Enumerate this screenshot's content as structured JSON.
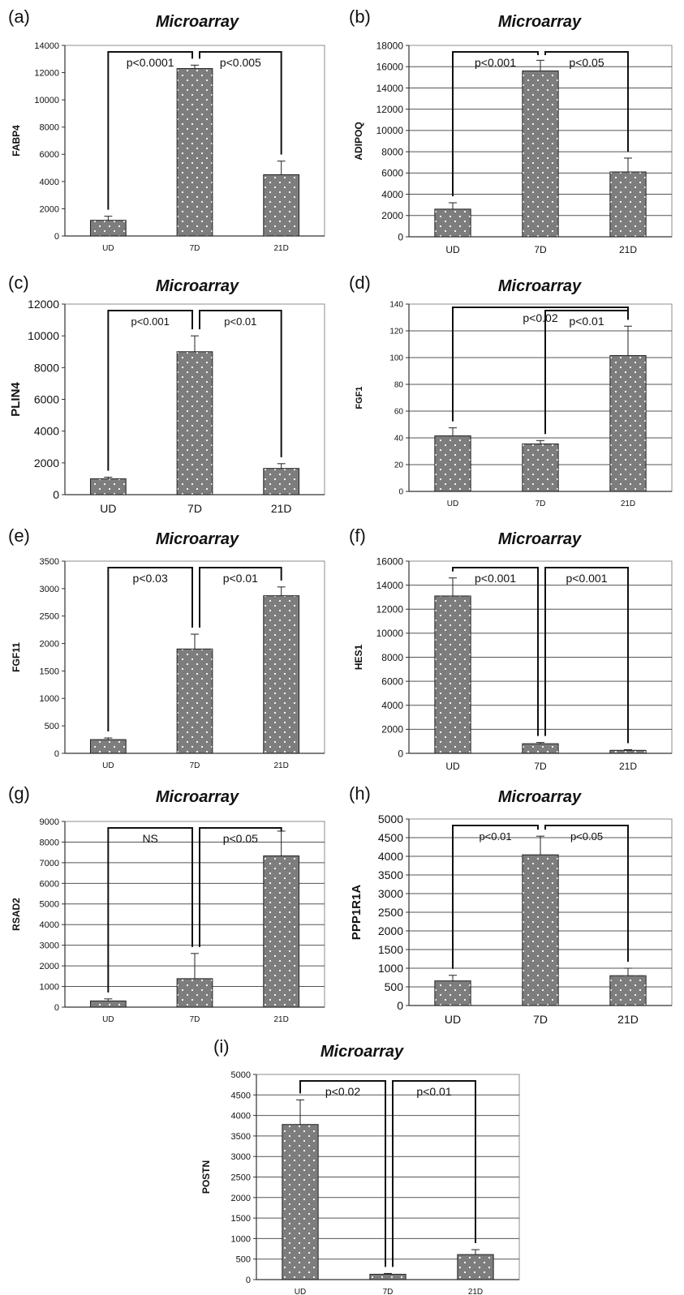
{
  "chart_data": [
    {
      "panel": "(a)",
      "title": "Microarray",
      "type": "bar",
      "ylabel": "FABP4",
      "categories": [
        "UD",
        "7D",
        "21D"
      ],
      "values": [
        1150,
        12300,
        4500
      ],
      "errors": [
        300,
        250,
        1000
      ],
      "ylim": [
        0,
        14000
      ],
      "yticks": [
        0,
        2000,
        4000,
        6000,
        8000,
        10000,
        12000,
        14000
      ],
      "grid": false,
      "annotations": [
        {
          "from": 0,
          "to": 1,
          "label": "p<0.0001"
        },
        {
          "from": 1,
          "to": 2,
          "label": "p<0.005"
        }
      ]
    },
    {
      "panel": "(b)",
      "title": "Microarray",
      "type": "bar",
      "ylabel": "ADIPOQ",
      "categories": [
        "UD",
        "7D",
        "21D"
      ],
      "values": [
        2600,
        15600,
        6100
      ],
      "errors": [
        600,
        1000,
        1300
      ],
      "ylim": [
        0,
        18000
      ],
      "yticks": [
        0,
        2000,
        4000,
        6000,
        8000,
        10000,
        12000,
        14000,
        16000,
        18000
      ],
      "grid": true,
      "annotations": [
        {
          "from": 0,
          "to": 1,
          "label": "p<0.001"
        },
        {
          "from": 1,
          "to": 2,
          "label": "p<0.05"
        }
      ]
    },
    {
      "panel": "(c)",
      "title": "Microarray",
      "type": "bar",
      "ylabel": "PLIN4",
      "categories": [
        "UD",
        "7D",
        "21D"
      ],
      "values": [
        1000,
        9000,
        1650
      ],
      "errors": [
        100,
        1000,
        300
      ],
      "ylim": [
        0,
        12000
      ],
      "yticks": [
        0,
        2000,
        4000,
        6000,
        8000,
        10000,
        12000
      ],
      "grid": false,
      "annotations": [
        {
          "from": 0,
          "to": 1,
          "label": "p<0.001"
        },
        {
          "from": 1,
          "to": 2,
          "label": "p<0.01"
        }
      ]
    },
    {
      "panel": "(d)",
      "title": "Microarray",
      "type": "bar",
      "ylabel": "FGF1",
      "categories": [
        "UD",
        "7D",
        "21D"
      ],
      "values": [
        41.5,
        35.5,
        101.5
      ],
      "errors": [
        6,
        2.5,
        22
      ],
      "ylim": [
        0,
        140
      ],
      "yticks": [
        0,
        20,
        40,
        60,
        80,
        100,
        120,
        140
      ],
      "grid": true,
      "annotations": [
        {
          "from": 0,
          "to": 2,
          "label": "p<0.02"
        },
        {
          "from": 1,
          "to": 2,
          "label": "p<0.01"
        }
      ]
    },
    {
      "panel": "(e)",
      "title": "Microarray",
      "type": "bar",
      "ylabel": "FGF11",
      "categories": [
        "UD",
        "7D",
        "21D"
      ],
      "values": [
        250,
        1900,
        2870
      ],
      "errors": [
        30,
        270,
        160
      ],
      "ylim": [
        0,
        3500
      ],
      "yticks": [
        0,
        500,
        1000,
        1500,
        2000,
        2500,
        3000,
        3500
      ],
      "grid": false,
      "annotations": [
        {
          "from": 0,
          "to": 1,
          "label": "p<0.03"
        },
        {
          "from": 1,
          "to": 2,
          "label": "p<0.01"
        }
      ]
    },
    {
      "panel": "(f)",
      "title": "Microarray",
      "type": "bar",
      "ylabel": "HES1",
      "categories": [
        "UD",
        "7D",
        "21D"
      ],
      "values": [
        13100,
        800,
        250
      ],
      "errors": [
        1500,
        100,
        50
      ],
      "ylim": [
        0,
        16000
      ],
      "yticks": [
        0,
        2000,
        4000,
        6000,
        8000,
        10000,
        12000,
        14000,
        16000
      ],
      "grid": true,
      "annotations": [
        {
          "from": 0,
          "to": 1,
          "label": "p<0.001"
        },
        {
          "from": 1,
          "to": 2,
          "label": "p<0.001"
        }
      ]
    },
    {
      "panel": "(g)",
      "title": "Microarray",
      "type": "bar",
      "ylabel": "RSAD2",
      "categories": [
        "UD",
        "7D",
        "21D"
      ],
      "values": [
        300,
        1380,
        7330
      ],
      "errors": [
        100,
        1220,
        1200
      ],
      "ylim": [
        0,
        9000
      ],
      "yticks": [
        0,
        1000,
        2000,
        3000,
        4000,
        5000,
        6000,
        7000,
        8000,
        9000
      ],
      "grid": true,
      "annotations": [
        {
          "from": 0,
          "to": 1,
          "label": "NS"
        },
        {
          "from": 1,
          "to": 2,
          "label": "p<0.05"
        }
      ]
    },
    {
      "panel": "(h)",
      "title": "Microarray",
      "type": "bar",
      "ylabel": "PPP1R1A",
      "categories": [
        "UD",
        "7D",
        "21D"
      ],
      "values": [
        660,
        4040,
        800
      ],
      "errors": [
        150,
        500,
        200
      ],
      "ylim": [
        0,
        5000
      ],
      "yticks": [
        0,
        500,
        1000,
        1500,
        2000,
        2500,
        3000,
        3500,
        4000,
        4500,
        5000
      ],
      "grid": true,
      "annotations": [
        {
          "from": 0,
          "to": 1,
          "label": "p<0.01"
        },
        {
          "from": 1,
          "to": 2,
          "label": "p<0.05"
        }
      ]
    },
    {
      "panel": "(i)",
      "title": "Microarray",
      "type": "bar",
      "ylabel": "POSTN",
      "categories": [
        "UD",
        "7D",
        "21D"
      ],
      "values": [
        3780,
        130,
        610
      ],
      "errors": [
        600,
        20,
        120
      ],
      "ylim": [
        0,
        5000
      ],
      "yticks": [
        0,
        500,
        1000,
        1500,
        2000,
        2500,
        3000,
        3500,
        4000,
        4500,
        5000
      ],
      "grid": true,
      "annotations": [
        {
          "from": 0,
          "to": 1,
          "label": "p<0.02"
        },
        {
          "from": 1,
          "to": 2,
          "label": "p<0.01"
        }
      ]
    }
  ]
}
